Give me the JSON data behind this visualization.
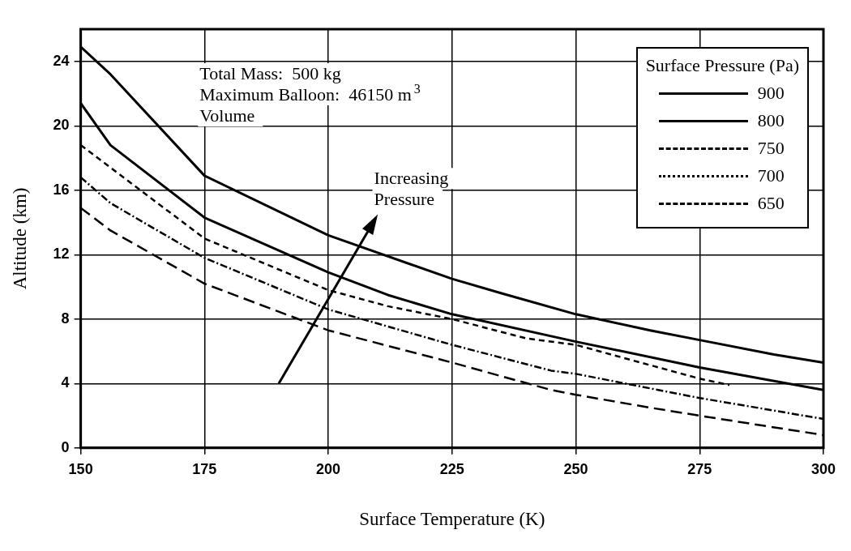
{
  "chart_data": {
    "type": "line",
    "xlabel": "Surface Temperature (K)",
    "ylabel": "Altitude (km)",
    "legend_title": "Surface Pressure (Pa)",
    "legend": "top right",
    "grid": true,
    "marker": "none",
    "xlim": [
      150,
      300
    ],
    "xticks": [
      150,
      175,
      200,
      225,
      250,
      275,
      300
    ],
    "ylim": [
      0,
      26
    ],
    "yticks": [
      0,
      4,
      8,
      12,
      16,
      20,
      24
    ],
    "annotations": [
      "Total Mass:  500 kg\nMaximum Balloon:  46150 m$^{3}$\nVolume",
      "Increasing\nPressure"
    ],
    "series": [
      {
        "name": "900",
        "color": "#000000",
        "line_style": "solid",
        "x": [
          150,
          156,
          175,
          200,
          225,
          235,
          250,
          265,
          275,
          290,
          300
        ],
        "values": [
          24.9,
          23.2,
          16.9,
          13.2,
          10.5,
          9.6,
          8.3,
          7.3,
          6.7,
          5.8,
          5.3
        ]
      },
      {
        "name": "800",
        "color": "#000000",
        "line_style": "solid",
        "x": [
          150,
          156,
          175,
          200,
          212,
          225,
          250,
          275,
          300
        ],
        "values": [
          21.4,
          18.8,
          14.3,
          10.9,
          9.5,
          8.3,
          6.6,
          5.0,
          3.6
        ]
      },
      {
        "name": "750",
        "color": "#000000",
        "line_style": "dashed",
        "x": [
          150,
          175,
          200,
          212,
          225,
          240,
          250,
          275,
          281
        ],
        "values": [
          18.8,
          13.0,
          9.8,
          8.8,
          8.0,
          6.8,
          6.4,
          4.3,
          3.9
        ]
      },
      {
        "name": "700",
        "color": "#000000",
        "line_style": "dotted",
        "x": [
          150,
          156,
          175,
          200,
          225,
          245,
          250,
          275,
          300
        ],
        "values": [
          16.8,
          15.2,
          11.8,
          8.6,
          6.4,
          4.8,
          4.6,
          3.1,
          1.8
        ]
      },
      {
        "name": "650",
        "color": "#000000",
        "line_style": "dashed",
        "x": [
          150,
          156,
          175,
          200,
          225,
          245,
          250,
          265,
          275,
          300
        ],
        "values": [
          14.9,
          13.5,
          10.2,
          7.3,
          5.3,
          3.6,
          3.3,
          2.5,
          2.0,
          0.8
        ]
      }
    ]
  }
}
